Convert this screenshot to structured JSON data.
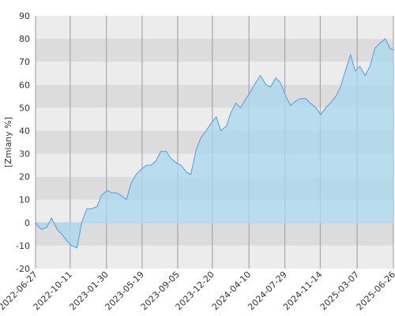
{
  "chart_data": {
    "type": "area",
    "y_label": "[Zmiany %]",
    "x": [
      "2022-06-27",
      "2022-07-01",
      "2022-07-15",
      "2022-08-01",
      "2022-08-15",
      "2022-09-01",
      "2022-09-15",
      "2022-10-01",
      "2022-10-15",
      "2022-11-01",
      "2022-11-15",
      "2022-12-01",
      "2022-12-15",
      "2023-01-01",
      "2023-01-15",
      "2023-02-01",
      "2023-02-15",
      "2023-03-01",
      "2023-03-15",
      "2023-04-01",
      "2023-04-15",
      "2023-05-01",
      "2023-05-15",
      "2023-06-01",
      "2023-06-15",
      "2023-07-01",
      "2023-07-15",
      "2023-08-01",
      "2023-08-15",
      "2023-09-01",
      "2023-09-15",
      "2023-10-01",
      "2023-10-15",
      "2023-11-01",
      "2023-11-15",
      "2023-12-01",
      "2023-12-15",
      "2024-01-01",
      "2024-01-15",
      "2024-02-01",
      "2024-02-15",
      "2024-03-01",
      "2024-03-15",
      "2024-04-01",
      "2024-04-15",
      "2024-05-01",
      "2024-05-15",
      "2024-06-01",
      "2024-06-15",
      "2024-07-01",
      "2024-07-15",
      "2024-08-01",
      "2024-08-15",
      "2024-09-01",
      "2024-09-15",
      "2024-10-01",
      "2024-10-15",
      "2024-11-01",
      "2024-11-15",
      "2024-12-01",
      "2024-12-15",
      "2025-01-01",
      "2025-01-15",
      "2025-02-01",
      "2025-02-15",
      "2025-03-01",
      "2025-03-15",
      "2025-04-01",
      "2025-04-15",
      "2025-05-01",
      "2025-05-15",
      "2025-06-01",
      "2025-06-15",
      "2025-06-26"
    ],
    "values": [
      0,
      -1,
      -3,
      -2,
      2,
      -3,
      -5,
      -8,
      -10,
      -11,
      0,
      6,
      6,
      7,
      12,
      14,
      13,
      13,
      12,
      10,
      17,
      21,
      23,
      25,
      25,
      27,
      31,
      31,
      28,
      26,
      25,
      22,
      21,
      32,
      37,
      40,
      43,
      46,
      40,
      42,
      48,
      52,
      50,
      54,
      57,
      61,
      64,
      60,
      59,
      63,
      61,
      55,
      51,
      53,
      54,
      54,
      52,
      50,
      47,
      50,
      52,
      55,
      59,
      67,
      73,
      66,
      68,
      64,
      68,
      76,
      78,
      80,
      76,
      75
    ],
    "color": "#4a9ee6",
    "fill_color": "#a9d8ee",
    "xlim": [
      "2022-06-27",
      "2025-06-26"
    ],
    "xticks": [
      "2022-06-27",
      "2022-10-11",
      "2023-01-30",
      "2023-05-19",
      "2023-09-05",
      "2023-12-20",
      "2024-04-10",
      "2024-07-29",
      "2024-11-14",
      "2025-03-07",
      "2025-06-26"
    ],
    "ylim": [
      -20,
      90
    ],
    "yticks": [
      -20,
      -10,
      0,
      10,
      20,
      30,
      40,
      50,
      60,
      70,
      80,
      90
    ],
    "grid": true
  }
}
